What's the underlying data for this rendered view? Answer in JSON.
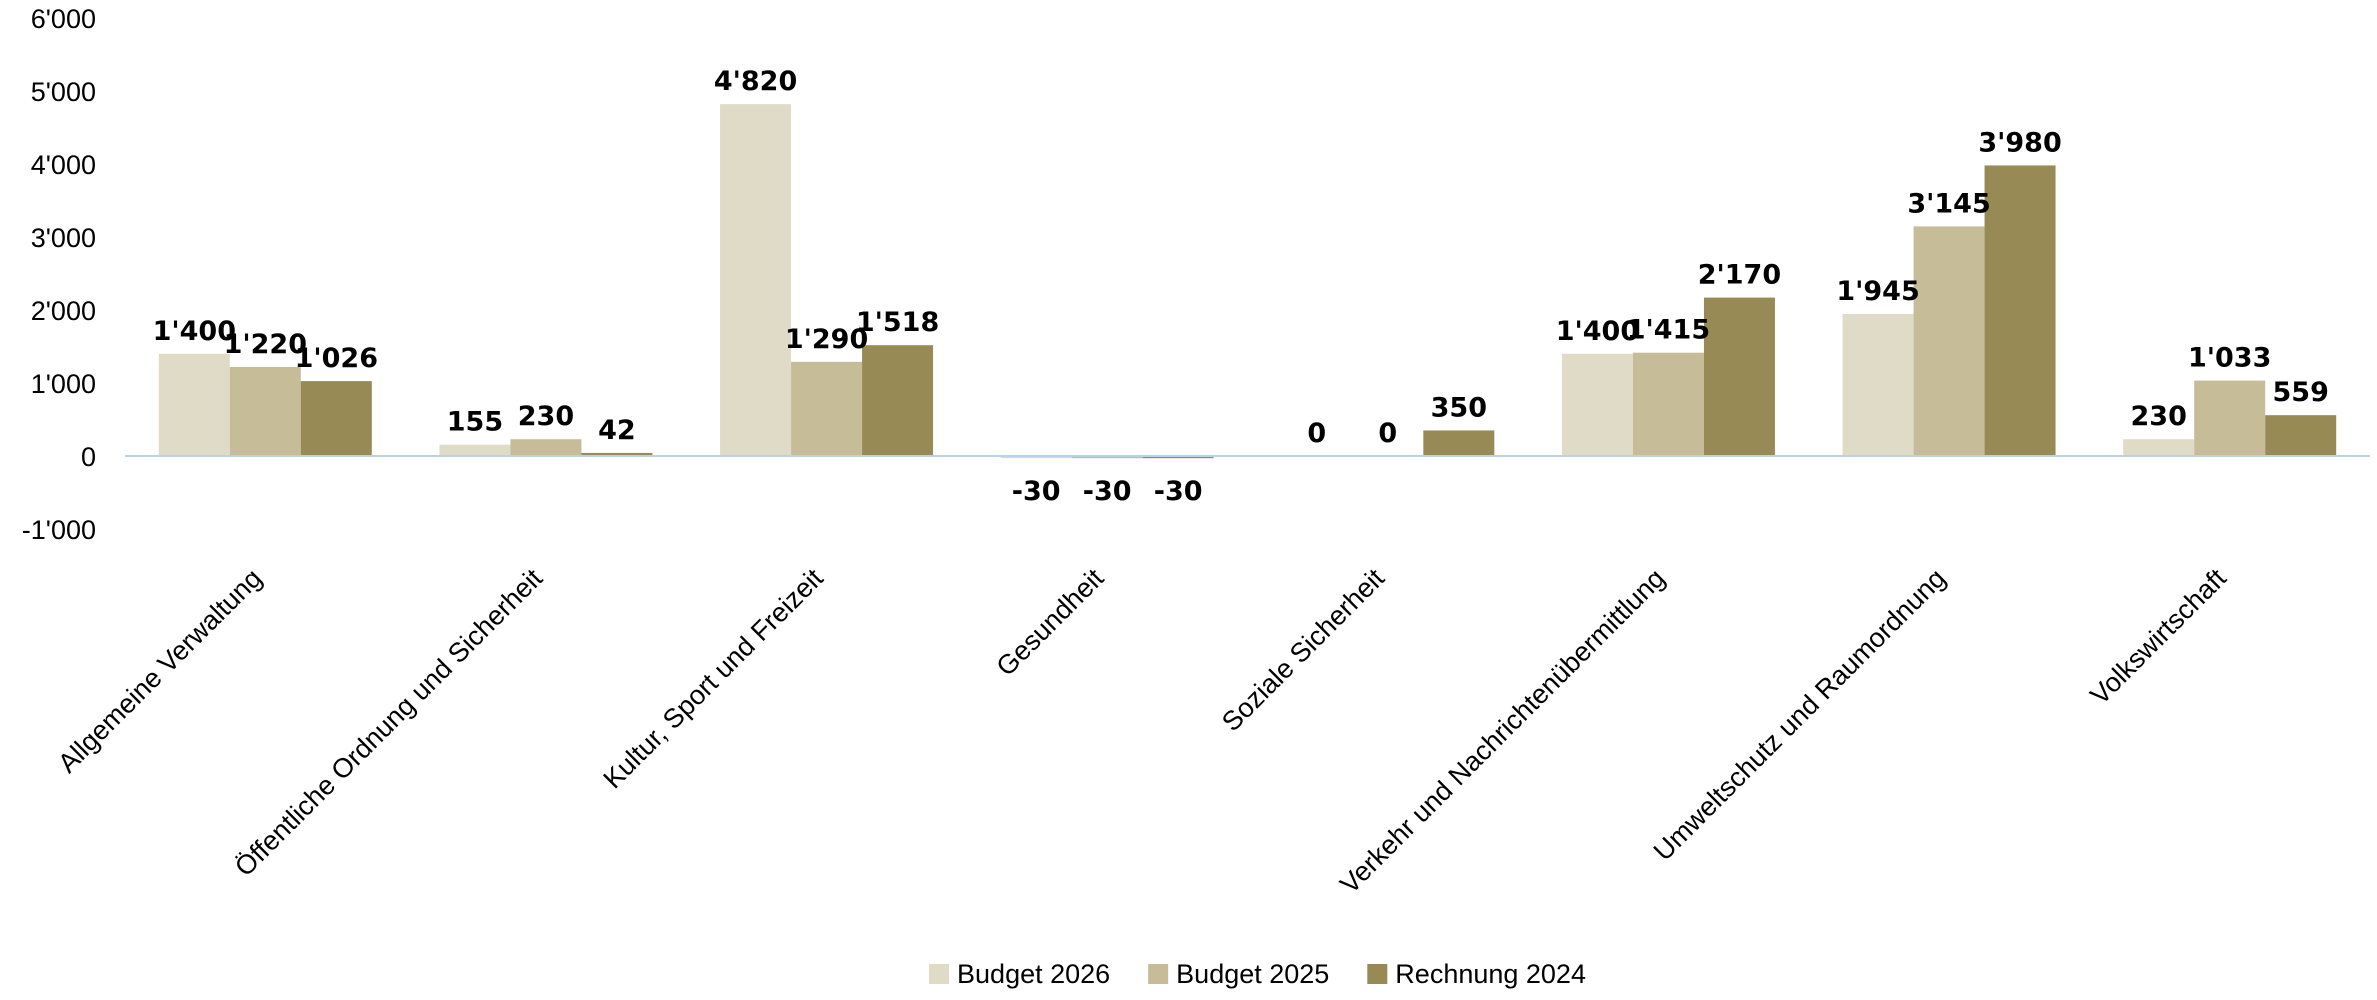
{
  "chart_data": {
    "type": "bar",
    "title": "",
    "xlabel": "",
    "ylabel": "",
    "ylim": [
      -1000,
      6000
    ],
    "yticks": [
      -1000,
      0,
      1000,
      2000,
      3000,
      4000,
      5000,
      6000
    ],
    "ytick_labels": [
      "-1'000",
      "0",
      "1'000",
      "2'000",
      "3'000",
      "4'000",
      "5'000",
      "6'000"
    ],
    "grid": false,
    "legend_position": "bottom",
    "categories": [
      "Allgemeine Verwaltung",
      "Öffentliche Ordnung und Sicherheit",
      "Kultur, Sport und Freizeit",
      "Gesundheit",
      "Soziale Sicherheit",
      "Verkehr und Nachrichtenübermittlung",
      "Umweltschutz und Raumordnung",
      "Volkswirtschaft"
    ],
    "series": [
      {
        "name": "Budget 2026",
        "color": "#e0dbc6",
        "values": [
          1400,
          155,
          4820,
          -30,
          0,
          1400,
          1945,
          230
        ],
        "labels": [
          "1'400",
          "155",
          "4'820",
          "-30",
          "0",
          "1'400",
          "1'945",
          "230"
        ]
      },
      {
        "name": "Budget 2025",
        "color": "#c6bc98",
        "values": [
          1220,
          230,
          1290,
          -30,
          0,
          1415,
          3145,
          1033
        ],
        "labels": [
          "1'220",
          "230",
          "1'290",
          "-30",
          "0",
          "1'415",
          "3'145",
          "1'033"
        ]
      },
      {
        "name": "Rechnung 2024",
        "color": "#978a54",
        "values": [
          1026,
          42,
          1518,
          -30,
          350,
          2170,
          3980,
          559
        ],
        "labels": [
          "1'026",
          "42",
          "1'518",
          "-30",
          "",
          "2'170",
          "3'980",
          "559"
        ]
      }
    ],
    "extra_labels": [
      "350"
    ],
    "axis_color": "#b8d3e8"
  }
}
